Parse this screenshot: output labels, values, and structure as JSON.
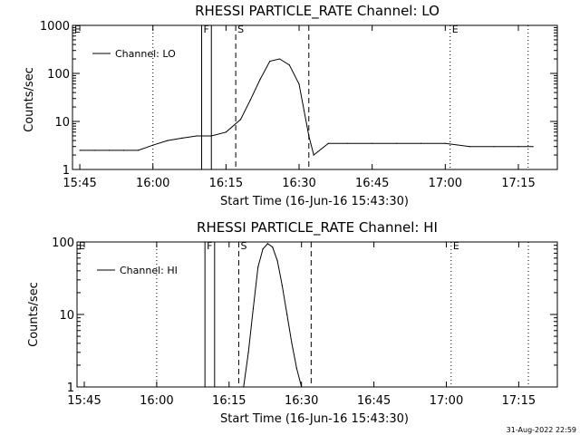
{
  "chart_data": [
    {
      "type": "line",
      "title": "RHESSI PARTICLE_RATE Channel: LO",
      "xlabel": "Start Time (16-Jun-16 15:43:30)",
      "ylabel": "Counts/sec",
      "yscale": "log",
      "ylim": [
        1,
        1000
      ],
      "xlim": [
        "15:43:30",
        "17:23:00"
      ],
      "x_ticks": [
        "15:45",
        "16:00",
        "16:15",
        "16:30",
        "16:45",
        "17:00",
        "17:15"
      ],
      "y_ticks": [
        "1",
        "10",
        "100",
        "1000"
      ],
      "legend": {
        "placement": "top-left",
        "entries": [
          "Channel: LO"
        ]
      },
      "markers": [
        {
          "label": "E",
          "time": "15:43:30",
          "style": "dotted"
        },
        {
          "label": "",
          "time": "16:00",
          "style": "dotted"
        },
        {
          "label": "F",
          "time": "16:10",
          "style": "solid"
        },
        {
          "label": "",
          "time": "16:12",
          "style": "solid"
        },
        {
          "label": "S",
          "time": "16:17",
          "style": "dashed"
        },
        {
          "label": "",
          "time": "16:32",
          "style": "dashed"
        },
        {
          "label": "E",
          "time": "17:01",
          "style": "dotted"
        },
        {
          "label": "",
          "time": "17:17",
          "style": "dotted"
        }
      ],
      "series": [
        {
          "name": "Channel: LO",
          "x": [
            "15:45",
            "15:48",
            "15:51",
            "15:54",
            "15:57",
            "16:00",
            "16:03",
            "16:06",
            "16:09",
            "16:12",
            "16:15",
            "16:18",
            "16:20",
            "16:22",
            "16:24",
            "16:26",
            "16:28",
            "16:30",
            "16:32",
            "16:33",
            "16:36",
            "16:40",
            "16:45",
            "16:50",
            "16:55",
            "17:00",
            "17:05",
            "17:10",
            "17:15",
            "17:18"
          ],
          "y": [
            2.5,
            2.5,
            2.5,
            2.5,
            2.5,
            3.2,
            4,
            4.5,
            5,
            5,
            6,
            11,
            28,
            75,
            180,
            200,
            150,
            60,
            5,
            2,
            3.5,
            3.5,
            3.5,
            3.5,
            3.5,
            3.5,
            3,
            3,
            3,
            3
          ]
        }
      ]
    },
    {
      "type": "line",
      "title": "RHESSI PARTICLE_RATE Channel: HI",
      "xlabel": "Start Time (16-Jun-16 15:43:30)",
      "ylabel": "Counts/sec",
      "yscale": "log",
      "ylim": [
        1,
        100
      ],
      "xlim": [
        "15:43:30",
        "17:23:00"
      ],
      "x_ticks": [
        "15:45",
        "16:00",
        "16:15",
        "16:30",
        "16:45",
        "17:00",
        "17:15"
      ],
      "y_ticks": [
        "1",
        "10",
        "100"
      ],
      "legend": {
        "placement": "top-left",
        "entries": [
          "Channel: HI"
        ]
      },
      "markers": [
        {
          "label": "E",
          "time": "15:43:30",
          "style": "dotted"
        },
        {
          "label": "",
          "time": "16:00",
          "style": "dotted"
        },
        {
          "label": "F",
          "time": "16:10",
          "style": "solid"
        },
        {
          "label": "",
          "time": "16:12",
          "style": "solid"
        },
        {
          "label": "S",
          "time": "16:17",
          "style": "dashed"
        },
        {
          "label": "",
          "time": "16:32",
          "style": "dashed"
        },
        {
          "label": "E",
          "time": "17:01",
          "style": "dotted"
        },
        {
          "label": "",
          "time": "17:17",
          "style": "dotted"
        }
      ],
      "series": [
        {
          "name": "Channel: HI",
          "x": [
            "16:18",
            "16:19",
            "16:20",
            "16:21",
            "16:22",
            "16:23",
            "16:24",
            "16:25",
            "16:26",
            "16:27",
            "16:28",
            "16:29",
            "16:30"
          ],
          "y": [
            1,
            3,
            12,
            45,
            80,
            95,
            85,
            55,
            25,
            10,
            4,
            1.8,
            1
          ]
        }
      ]
    }
  ],
  "footer": {
    "timestamp": "31-Aug-2022 22:59"
  }
}
